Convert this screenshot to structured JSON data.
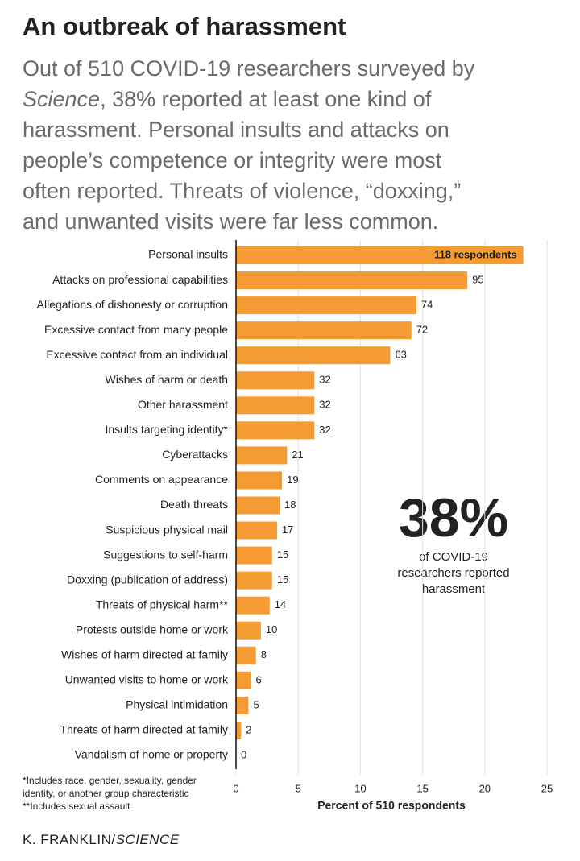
{
  "chart_data": {
    "type": "bar",
    "orientation": "horizontal",
    "title": "An outbreak of harassment",
    "subtitle": [
      "Out of 510 COVID-19 researchers surveyed by",
      "Science",
      ", 38% reported at least one kind of",
      "harassment. Personal insults and attacks on",
      "people’s competence or integrity were most",
      "often reported. Threats of violence, “doxxing,”",
      "and unwanted visits were far less common."
    ],
    "categories": [
      "Personal insults",
      "Attacks on professional capabilities",
      "Allegations of dishonesty or corruption",
      "Excessive contact from many people",
      "Excessive contact from an individual",
      "Wishes of harm or death",
      "Other harassment",
      "Insults targeting identity*",
      "Cyberattacks",
      "Comments on appearance",
      "Death threats",
      "Suspicious physical mail",
      "Suggestions to self-harm",
      "Doxxing (publication of address)",
      "Threats of physical harm**",
      "Protests outside home or work",
      "Wishes of harm directed at family",
      "Unwanted visits to home or work",
      "Physical intimidation",
      "Threats of harm directed at family",
      "Vandalism of home or property"
    ],
    "values": [
      23.1,
      18.6,
      14.5,
      14.1,
      12.4,
      6.3,
      6.3,
      6.3,
      4.1,
      3.7,
      3.5,
      3.3,
      2.9,
      2.9,
      2.7,
      2.0,
      1.6,
      1.2,
      1.0,
      0.4,
      0
    ],
    "value_labels": [
      "118 respondents",
      "95",
      "74",
      "72",
      "63",
      "32",
      "32",
      "32",
      "21",
      "19",
      "18",
      "17",
      "15",
      "15",
      "14",
      "10",
      "8",
      "6",
      "5",
      "2",
      "0"
    ],
    "color": "#f49b33",
    "xlim": [
      0,
      25
    ],
    "xticks": [
      0,
      5,
      10,
      15,
      20,
      25
    ],
    "xlabel": "Percent of 510 respondents",
    "grid": true,
    "annotation": {
      "big": "38%",
      "lines": [
        "of COVID-19",
        "researchers reported",
        "harassment"
      ]
    },
    "footnotes": [
      "*Includes race, gender, sexuality, gender",
      "identity, or another group characteristic",
      "**Includes sexual assault"
    ],
    "credit": [
      "K. FRANKLIN/",
      "SCIENCE"
    ]
  }
}
